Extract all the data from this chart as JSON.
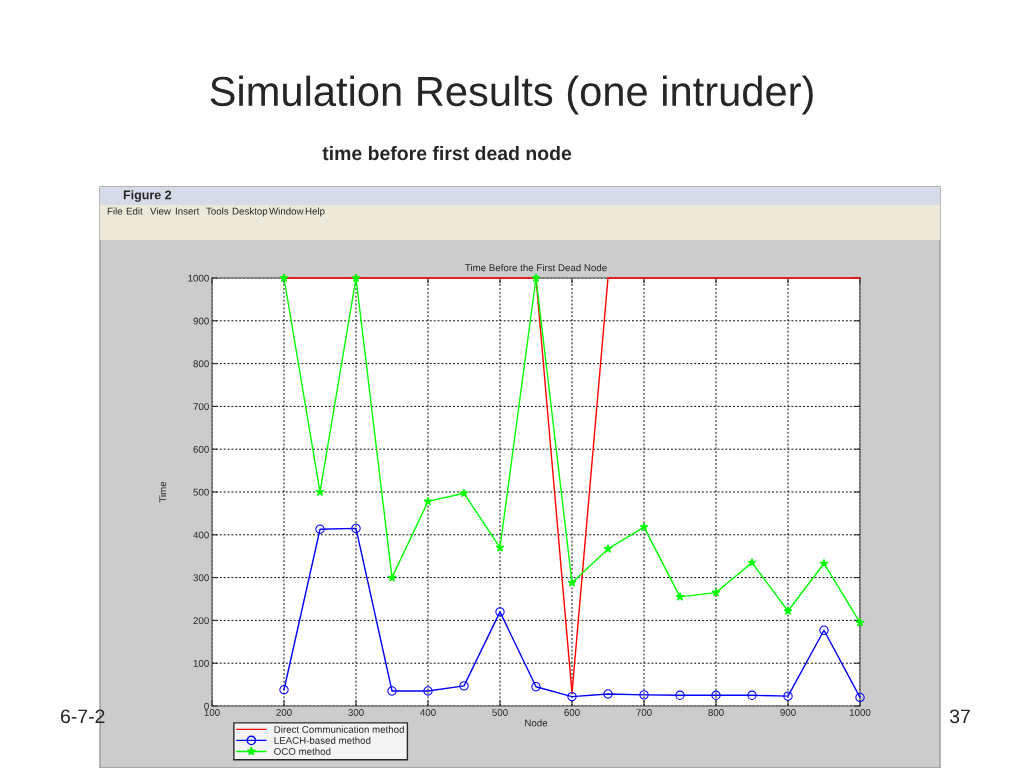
{
  "chart_data": {
    "type": "line",
    "title": "Time Before the First Dead Node",
    "subtitle": "time before first dead node",
    "xlabel": "Node",
    "ylabel": "Time",
    "annotations": [
      "Simulation Results (one intruder)",
      "Figure 2",
      "File",
      "Edit",
      "View",
      "Insert",
      "Tools",
      "Desktop",
      "Window",
      "Help",
      "6-7-2",
      "37"
    ],
    "x": [
      200,
      250,
      300,
      350,
      400,
      450,
      500,
      550,
      600,
      650,
      700,
      750,
      800,
      850,
      900,
      950,
      1000
    ],
    "series": [
      {
        "name": "Direct Communication method",
        "color": "#ff0000",
        "marker": "none",
        "values": [
          1000,
          1000,
          1000,
          1000,
          1000,
          1000,
          1000,
          1000,
          30,
          1000,
          1000,
          1000,
          1000,
          1000,
          1000,
          1000,
          1000
        ]
      },
      {
        "name": "LEACH-based method",
        "color": "#0000ff",
        "marker": "circle",
        "values": [
          38,
          413,
          415,
          35,
          35,
          47,
          220,
          45,
          22,
          28,
          26,
          25,
          25,
          25,
          23,
          177,
          20
        ]
      },
      {
        "name": "OCO method",
        "color": "#00ff00",
        "marker": "star",
        "values": [
          1000,
          500,
          1000,
          300,
          478,
          497,
          370,
          1000,
          288,
          367,
          418,
          255,
          265,
          335,
          222,
          333,
          195
        ]
      }
    ],
    "xlim": [
      100,
      1000
    ],
    "ylim": [
      0,
      1000
    ],
    "xticks": [
      100,
      200,
      300,
      400,
      500,
      600,
      700,
      800,
      900,
      1000
    ],
    "yticks": [
      0,
      100,
      200,
      300,
      400,
      500,
      600,
      700,
      800,
      900,
      1000
    ],
    "grid": true,
    "legend": "bottom left",
    "line_style": "solid"
  }
}
